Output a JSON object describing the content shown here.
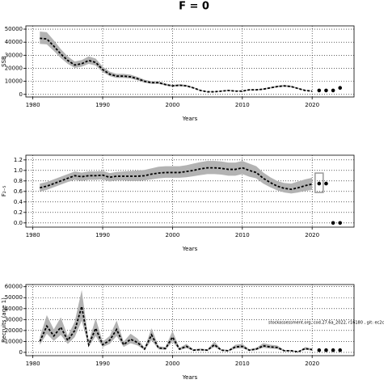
{
  "title": "F = 0",
  "chart_data": [
    {
      "type": "line",
      "ylabel": "SSB",
      "xlabel": "Years",
      "xlim": [
        1979,
        2026
      ],
      "xticks": [
        1980,
        1990,
        2000,
        2010,
        2020
      ],
      "ylim": [
        -2000,
        52500
      ],
      "yticks": [
        0,
        10000,
        20000,
        30000,
        40000,
        50000
      ],
      "grid": true,
      "series": [
        {
          "x": [
            1981,
            1982,
            1983,
            1984,
            1985,
            1986,
            1987,
            1988,
            1989,
            1990,
            1991,
            1992,
            1993,
            1994,
            1995,
            1996,
            1997,
            1998,
            1999,
            2000,
            2001,
            2002,
            2003,
            2004,
            2005,
            2006,
            2007,
            2008,
            2009,
            2010,
            2011,
            2012,
            2013,
            2014,
            2015,
            2016,
            2017,
            2018,
            2019,
            2020
          ],
          "values": [
            43000,
            42500,
            37000,
            31000,
            26000,
            22500,
            23500,
            26000,
            24500,
            19000,
            15500,
            14000,
            14000,
            13500,
            12000,
            10000,
            9000,
            9000,
            7500,
            6500,
            7000,
            6500,
            5000,
            3000,
            2000,
            2000,
            2500,
            3000,
            2500,
            2500,
            3500,
            3500,
            4000,
            5000,
            6000,
            6500,
            6000,
            4500,
            3000,
            2500
          ],
          "lower": [
            38700,
            38300,
            33300,
            27900,
            23400,
            20300,
            21200,
            23400,
            22100,
            17100,
            14000,
            12600,
            12600,
            12200,
            10800,
            9000,
            8100,
            8100,
            6800,
            5900,
            6300,
            5900,
            4500,
            2700,
            1800,
            1800,
            2300,
            2700,
            2300,
            2300,
            3200,
            3200,
            3600,
            4500,
            5400,
            5900,
            5400,
            4100,
            2700,
            2300
          ],
          "upper": [
            48200,
            47600,
            41400,
            34700,
            29100,
            25200,
            26300,
            29100,
            27400,
            21300,
            17400,
            15700,
            15700,
            15100,
            13400,
            11200,
            10100,
            10100,
            8400,
            7300,
            7800,
            7300,
            5600,
            3400,
            2200,
            2200,
            2800,
            3400,
            2800,
            2800,
            3900,
            3900,
            4500,
            5600,
            6700,
            7300,
            6700,
            5000,
            3400,
            2800
          ],
          "color": "#000000",
          "band_color": "#b3b3b3",
          "style": "line"
        },
        {
          "x": [
            2021,
            2022,
            2023,
            2024
          ],
          "values": [
            3000,
            3000,
            3000,
            5000
          ],
          "color": "#000000",
          "style": "points"
        }
      ]
    },
    {
      "type": "line",
      "ylabel": "F₂₋₅",
      "xlabel": "Years",
      "xlim": [
        1979,
        2026
      ],
      "xticks": [
        1980,
        1990,
        2000,
        2010,
        2020
      ],
      "ylim": [
        -0.08,
        1.29
      ],
      "yticks": [
        {
          "value": 0,
          "label": "0.0"
        },
        0.2,
        0.4,
        0.6,
        0.8,
        {
          "value": 1,
          "label": "1.0"
        },
        1.2
      ],
      "grid": true,
      "series": [
        {
          "x": [
            1981,
            1982,
            1983,
            1984,
            1985,
            1986,
            1987,
            1988,
            1989,
            1990,
            1991,
            1992,
            1993,
            1994,
            1995,
            1996,
            1997,
            1998,
            1999,
            2000,
            2001,
            2002,
            2003,
            2004,
            2005,
            2006,
            2007,
            2008,
            2009,
            2010,
            2011,
            2012,
            2013,
            2014,
            2015,
            2016,
            2017,
            2018,
            2019,
            2020
          ],
          "values": [
            0.67,
            0.7,
            0.75,
            0.8,
            0.85,
            0.9,
            0.88,
            0.9,
            0.9,
            0.91,
            0.87,
            0.89,
            0.89,
            0.89,
            0.89,
            0.9,
            0.93,
            0.95,
            0.96,
            0.96,
            0.96,
            0.98,
            1.0,
            1.03,
            1.05,
            1.05,
            1.04,
            1.02,
            1.02,
            1.05,
            1.0,
            0.96,
            0.85,
            0.77,
            0.7,
            0.66,
            0.64,
            0.67,
            0.71,
            0.74
          ],
          "lower": [
            0.6,
            0.63,
            0.68,
            0.73,
            0.78,
            0.82,
            0.8,
            0.82,
            0.82,
            0.83,
            0.79,
            0.81,
            0.81,
            0.8,
            0.8,
            0.81,
            0.83,
            0.85,
            0.86,
            0.86,
            0.86,
            0.87,
            0.89,
            0.91,
            0.93,
            0.93,
            0.92,
            0.9,
            0.9,
            0.93,
            0.88,
            0.85,
            0.75,
            0.68,
            0.62,
            0.58,
            0.56,
            0.58,
            0.61,
            0.63
          ],
          "upper": [
            0.75,
            0.78,
            0.83,
            0.88,
            0.93,
            0.98,
            0.96,
            0.98,
            0.98,
            0.99,
            0.95,
            0.97,
            0.98,
            0.99,
            1.0,
            1.01,
            1.04,
            1.07,
            1.08,
            1.08,
            1.08,
            1.1,
            1.13,
            1.16,
            1.18,
            1.18,
            1.17,
            1.15,
            1.15,
            1.18,
            1.13,
            1.08,
            0.96,
            0.87,
            0.8,
            0.76,
            0.75,
            0.79,
            0.83,
            0.86
          ],
          "color": "#000000",
          "band_color": "#b3b3b3",
          "style": "line"
        },
        {
          "x": [
            2021,
            2022,
            2023,
            2024
          ],
          "values": [
            0.75,
            0.75,
            0,
            0
          ],
          "color": "#000000",
          "style": "points"
        }
      ],
      "interval": {
        "x": 2021,
        "lower": 0.58,
        "upper": 0.95
      }
    },
    {
      "type": "line",
      "ylabel": "Recruits (age 1)",
      "xlabel": "Years",
      "xlim": [
        1979,
        2026
      ],
      "xticks": [
        1980,
        1990,
        2000,
        2010,
        2020
      ],
      "ylim": [
        -3000,
        62000
      ],
      "yticks": [
        0,
        10000,
        20000,
        30000,
        40000,
        50000,
        60000
      ],
      "grid": true,
      "annotation": "stockassessment.org, cod.27.6a_2022, r16180 , git: ec2c",
      "series": [
        {
          "x": [
            1981,
            1982,
            1983,
            1984,
            1985,
            1986,
            1987,
            1988,
            1989,
            1990,
            1991,
            1992,
            1993,
            1994,
            1995,
            1996,
            1997,
            1998,
            1999,
            2000,
            2001,
            2002,
            2003,
            2004,
            2005,
            2006,
            2007,
            2008,
            2009,
            2010,
            2011,
            2012,
            2013,
            2014,
            2015,
            2016,
            2017,
            2018,
            2019,
            2020
          ],
          "values": [
            10000,
            24000,
            15000,
            23000,
            11000,
            20000,
            42000,
            7000,
            22000,
            7000,
            11000,
            21000,
            7000,
            12000,
            9000,
            3000,
            16000,
            4000,
            3500,
            14000,
            3000,
            5500,
            2000,
            2500,
            2000,
            7000,
            2000,
            1500,
            5000,
            5500,
            2000,
            3000,
            6000,
            5000,
            4500,
            1500,
            1500,
            500,
            3500,
            2500
          ],
          "lower": [
            7000,
            17000,
            10500,
            16000,
            7700,
            14000,
            29000,
            4900,
            15000,
            4900,
            7700,
            15000,
            4900,
            8400,
            6300,
            2100,
            11000,
            2800,
            2400,
            9800,
            2100,
            3800,
            1400,
            1700,
            1400,
            4900,
            1400,
            1000,
            3500,
            3800,
            1400,
            2100,
            4200,
            3500,
            3100,
            1000,
            1000,
            300,
            2400,
            1700
          ],
          "upper": [
            14000,
            34000,
            21000,
            32000,
            15000,
            28000,
            57000,
            9800,
            31000,
            9800,
            15000,
            29000,
            9800,
            17000,
            12500,
            4200,
            22000,
            5600,
            4900,
            19500,
            4200,
            7700,
            2800,
            3500,
            2800,
            9800,
            2800,
            2100,
            7000,
            7700,
            2800,
            4200,
            8400,
            7000,
            6300,
            2100,
            2100,
            700,
            4900,
            3500
          ],
          "color": "#000000",
          "band_color": "#b3b3b3",
          "style": "line"
        },
        {
          "x": [
            2021,
            2022,
            2023,
            2024
          ],
          "values": [
            2000,
            2000,
            2000,
            2000
          ],
          "color": "#000000",
          "style": "points"
        }
      ]
    }
  ]
}
